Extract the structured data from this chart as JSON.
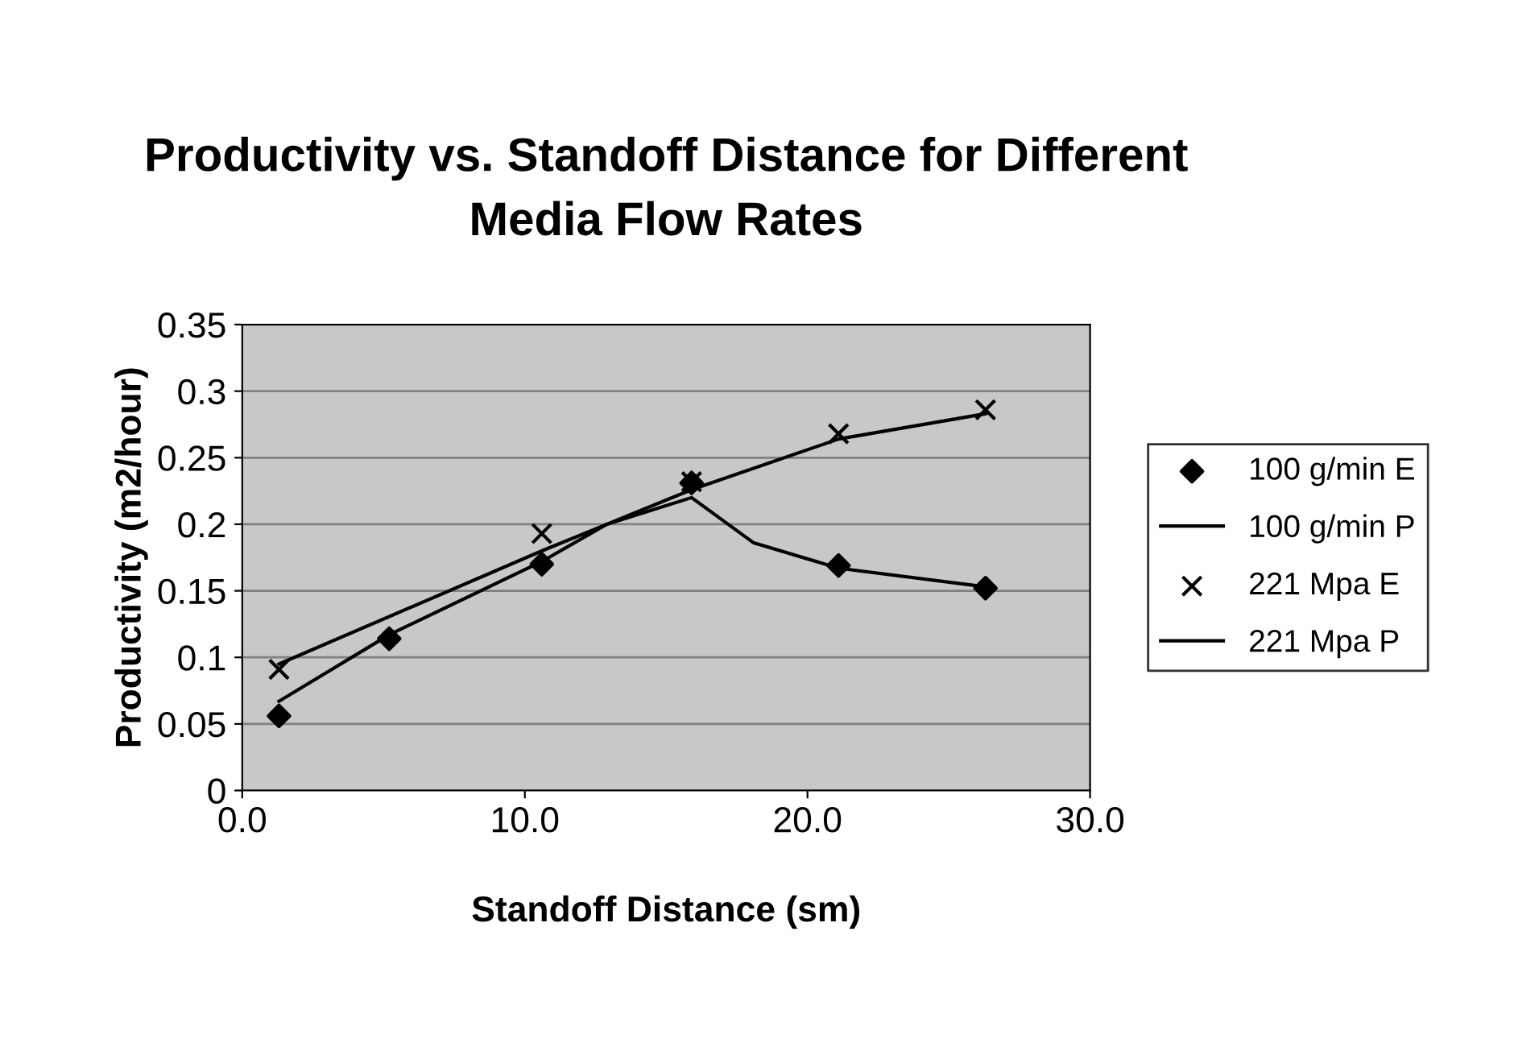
{
  "chart_data": {
    "type": "line",
    "title": "Productivity vs. Standoff Distance for Different\nMedia Flow Rates",
    "xlabel": "Standoff Distance (sm)",
    "ylabel": "Productivity (m2/hour)",
    "xlim": [
      0,
      30
    ],
    "xticks": [
      {
        "value": 0,
        "label": "0.0"
      },
      {
        "value": 10,
        "label": "10.0"
      },
      {
        "value": 20,
        "label": "20.0"
      },
      {
        "value": 30,
        "label": "30.0"
      }
    ],
    "ylim": [
      0,
      0.35
    ],
    "yticks": [
      0,
      0.05,
      0.1,
      0.15,
      0.2,
      0.25,
      0.3,
      0.35
    ],
    "grid": "y",
    "legend": "right",
    "series": [
      {
        "name": "100 g/min E",
        "type": "scatter",
        "marker": "diamond",
        "color": "#000000",
        "x": [
          1.3,
          5.2,
          10.6,
          15.9,
          21.1,
          26.3
        ],
        "values": [
          0.056,
          0.114,
          0.17,
          0.231,
          0.169,
          0.152
        ]
      },
      {
        "name": "100 g/min P",
        "marker": "none",
        "color": "#000000",
        "x": [
          1.3,
          5.2,
          10.6,
          12.9,
          15.9,
          18.1,
          21.1,
          26.3
        ],
        "values": [
          0.067,
          0.117,
          0.172,
          0.2,
          0.22,
          0.186,
          0.167,
          0.153
        ]
      },
      {
        "name": "221 Mpa E",
        "type": "scatter",
        "marker": "cross",
        "color": "#000000",
        "x": [
          1.3,
          10.6,
          15.9,
          21.1,
          26.3
        ],
        "values": [
          0.091,
          0.193,
          0.232,
          0.268,
          0.286
        ]
      },
      {
        "name": "221 Mpa P",
        "marker": "none",
        "color": "#000000",
        "x": [
          1.3,
          10.6,
          15.9,
          21.1,
          26.3
        ],
        "values": [
          0.095,
          0.18,
          0.226,
          0.264,
          0.283
        ]
      }
    ]
  }
}
